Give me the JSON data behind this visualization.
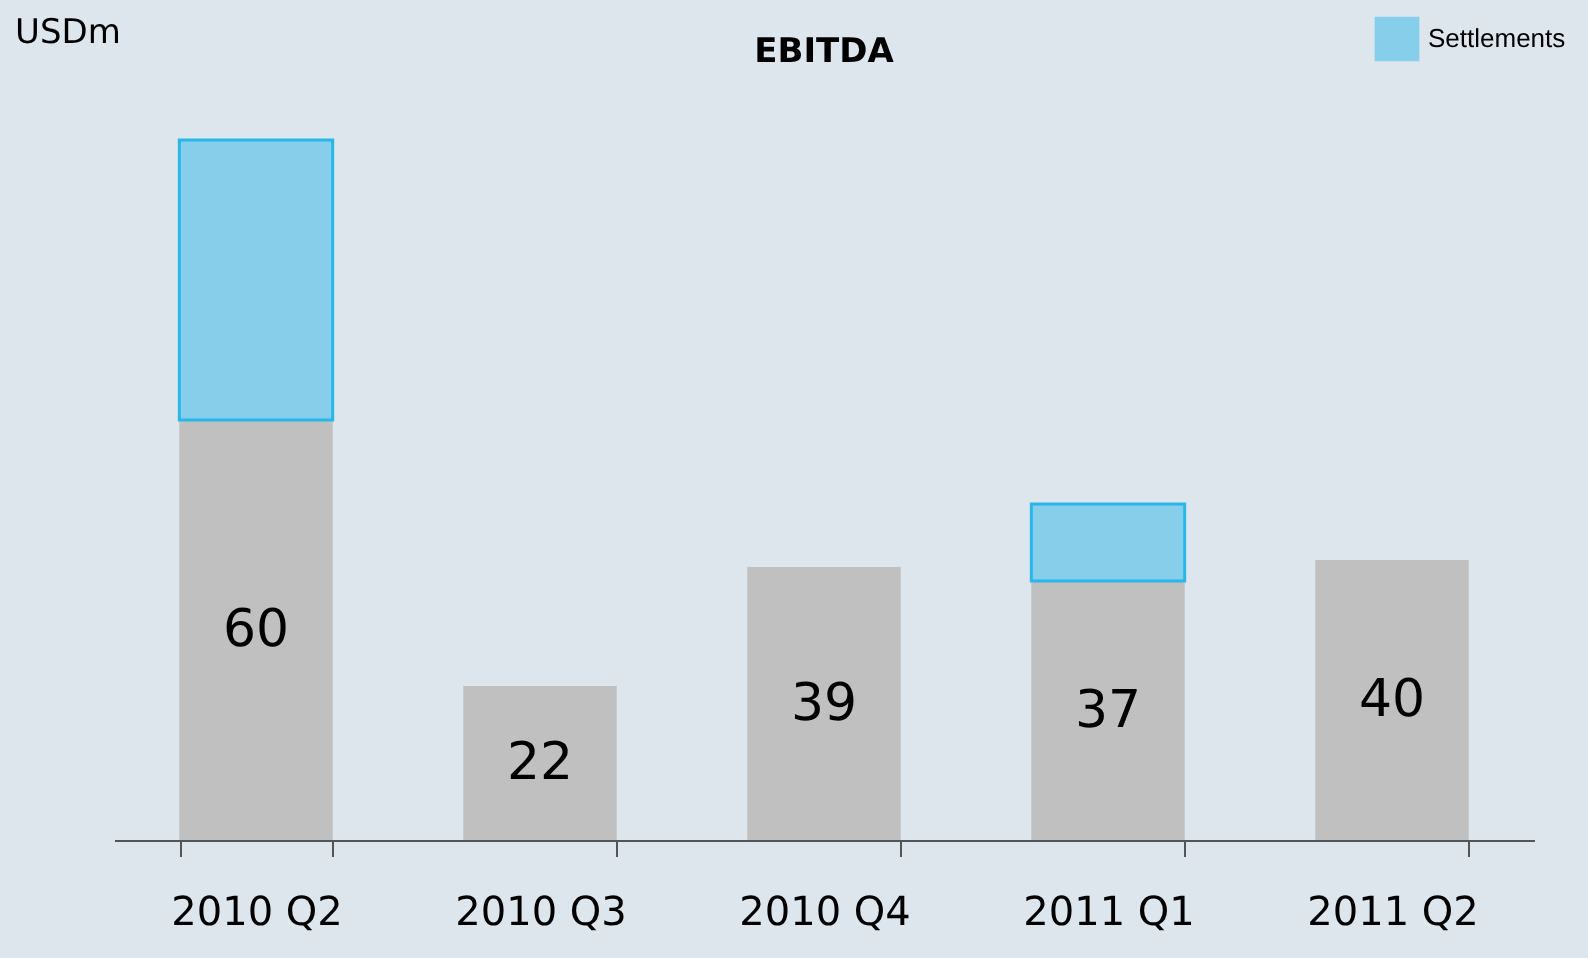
{
  "chart_data": {
    "type": "bar",
    "title": "EBITDA",
    "ylabel": "USDm",
    "categories": [
      "2010 Q2",
      "2010 Q3",
      "2010 Q4",
      "2011 Q1",
      "2011 Q2"
    ],
    "stacked": true,
    "tick_labels": "x",
    "grid": false,
    "legend": "top right",
    "series": [
      {
        "color": "#c0c0c0",
        "values": [
          60,
          22,
          39,
          37,
          40
        ],
        "value_labels": [
          "60",
          "22",
          "39",
          "37",
          "40"
        ]
      },
      {
        "name": "Settlements",
        "color": "#87ceeb",
        "values": [
          40,
          null,
          null,
          11,
          null
        ]
      }
    ]
  }
}
